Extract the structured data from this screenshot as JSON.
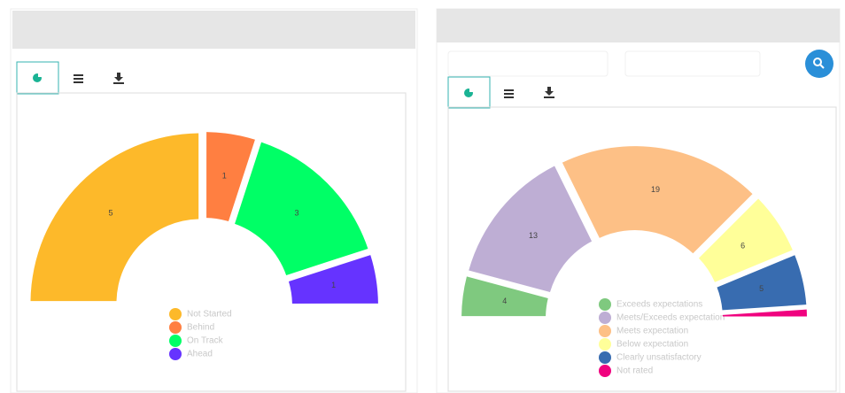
{
  "chart_data": [
    {
      "type": "halfdoughnut",
      "categories": [
        "Not Started",
        "Behind",
        "On Track",
        "Ahead"
      ],
      "values": [
        5,
        1,
        3,
        1
      ],
      "colors": [
        "#fdb92a",
        "#ff7f41",
        "#00ff66",
        "#6633ff"
      ]
    },
    {
      "type": "halfdoughnut",
      "categories": [
        "Exceeds expectations",
        "Meets/Exceeds expectation",
        "Meets expectation",
        "Below expectation",
        "Clearly unsatisfactory",
        "Not rated"
      ],
      "values": [
        4,
        13,
        19,
        6,
        5,
        1
      ],
      "colors": [
        "#7fc97f",
        "#beaed4",
        "#fdc086",
        "#ffff99",
        "#386cb0",
        "#f0027f"
      ]
    }
  ]
}
